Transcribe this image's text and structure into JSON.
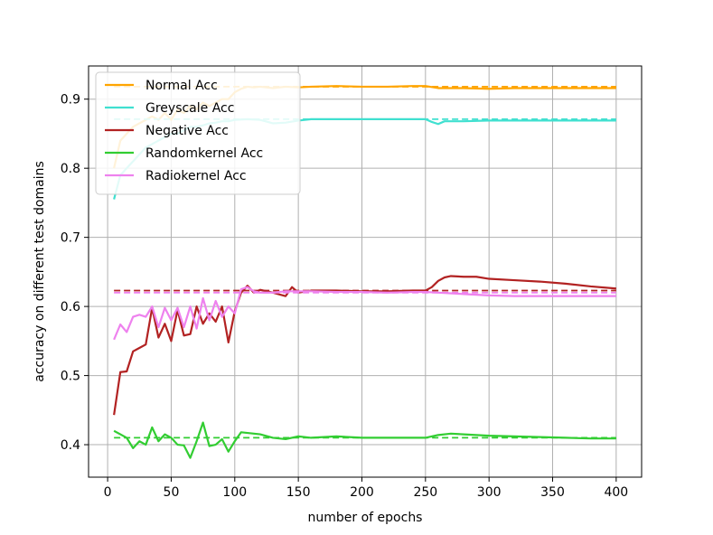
{
  "chart_data": {
    "type": "line",
    "title": "",
    "xlabel": "number of epochs",
    "ylabel": "accuracy on different test domains",
    "xlim": [
      -15,
      420
    ],
    "ylim": [
      0.353,
      0.948
    ],
    "xticks": [
      0,
      50,
      100,
      150,
      200,
      250,
      300,
      350,
      400
    ],
    "yticks": [
      0.4,
      0.5,
      0.6,
      0.7,
      0.8,
      0.9
    ],
    "ytick_labels": [
      "0.4",
      "0.5",
      "0.6",
      "0.7",
      "0.8",
      "0.9"
    ],
    "grid": true,
    "legend_position": "upper-left",
    "series": [
      {
        "name": "Normal Acc",
        "color": "#ffa500",
        "baseline": 0.918,
        "points": [
          [
            5,
            0.8
          ],
          [
            10,
            0.84
          ],
          [
            15,
            0.85
          ],
          [
            20,
            0.86
          ],
          [
            25,
            0.865
          ],
          [
            30,
            0.87
          ],
          [
            35,
            0.875
          ],
          [
            40,
            0.87
          ],
          [
            45,
            0.88
          ],
          [
            50,
            0.87
          ],
          [
            55,
            0.885
          ],
          [
            60,
            0.88
          ],
          [
            65,
            0.89
          ],
          [
            70,
            0.885
          ],
          [
            75,
            0.895
          ],
          [
            80,
            0.89
          ],
          [
            85,
            0.895
          ],
          [
            90,
            0.9
          ],
          [
            95,
            0.9
          ],
          [
            100,
            0.91
          ],
          [
            105,
            0.915
          ],
          [
            110,
            0.918
          ],
          [
            115,
            0.917
          ],
          [
            120,
            0.918
          ],
          [
            130,
            0.916
          ],
          [
            140,
            0.918
          ],
          [
            150,
            0.917
          ],
          [
            160,
            0.918
          ],
          [
            180,
            0.919
          ],
          [
            200,
            0.918
          ],
          [
            220,
            0.918
          ],
          [
            240,
            0.919
          ],
          [
            250,
            0.919
          ],
          [
            260,
            0.916
          ],
          [
            280,
            0.916
          ],
          [
            300,
            0.915
          ],
          [
            320,
            0.916
          ],
          [
            340,
            0.916
          ],
          [
            360,
            0.916
          ],
          [
            380,
            0.916
          ],
          [
            400,
            0.916
          ]
        ]
      },
      {
        "name": "Greyscale Acc",
        "color": "#40e0d0",
        "baseline": 0.871,
        "points": [
          [
            5,
            0.755
          ],
          [
            10,
            0.79
          ],
          [
            15,
            0.8
          ],
          [
            20,
            0.81
          ],
          [
            25,
            0.82
          ],
          [
            30,
            0.83
          ],
          [
            35,
            0.835
          ],
          [
            40,
            0.84
          ],
          [
            45,
            0.845
          ],
          [
            50,
            0.85
          ],
          [
            55,
            0.85
          ],
          [
            60,
            0.855
          ],
          [
            65,
            0.86
          ],
          [
            70,
            0.86
          ],
          [
            75,
            0.862
          ],
          [
            80,
            0.865
          ],
          [
            85,
            0.866
          ],
          [
            90,
            0.868
          ],
          [
            95,
            0.868
          ],
          [
            100,
            0.87
          ],
          [
            110,
            0.871
          ],
          [
            120,
            0.87
          ],
          [
            130,
            0.865
          ],
          [
            140,
            0.866
          ],
          [
            150,
            0.869
          ],
          [
            160,
            0.871
          ],
          [
            180,
            0.871
          ],
          [
            200,
            0.871
          ],
          [
            220,
            0.871
          ],
          [
            240,
            0.871
          ],
          [
            250,
            0.871
          ],
          [
            255,
            0.867
          ],
          [
            260,
            0.864
          ],
          [
            265,
            0.868
          ],
          [
            280,
            0.868
          ],
          [
            300,
            0.869
          ],
          [
            320,
            0.869
          ],
          [
            340,
            0.869
          ],
          [
            360,
            0.869
          ],
          [
            380,
            0.869
          ],
          [
            400,
            0.869
          ]
        ]
      },
      {
        "name": "Negative Acc",
        "color": "#b22222",
        "baseline": 0.623,
        "points": [
          [
            5,
            0.443
          ],
          [
            10,
            0.505
          ],
          [
            15,
            0.506
          ],
          [
            20,
            0.535
          ],
          [
            25,
            0.54
          ],
          [
            30,
            0.545
          ],
          [
            35,
            0.598
          ],
          [
            40,
            0.555
          ],
          [
            45,
            0.575
          ],
          [
            50,
            0.55
          ],
          [
            55,
            0.595
          ],
          [
            60,
            0.558
          ],
          [
            65,
            0.56
          ],
          [
            70,
            0.6
          ],
          [
            75,
            0.575
          ],
          [
            80,
            0.59
          ],
          [
            85,
            0.578
          ],
          [
            90,
            0.6
          ],
          [
            95,
            0.548
          ],
          [
            100,
            0.593
          ],
          [
            105,
            0.62
          ],
          [
            110,
            0.63
          ],
          [
            115,
            0.62
          ],
          [
            120,
            0.624
          ],
          [
            130,
            0.62
          ],
          [
            140,
            0.615
          ],
          [
            145,
            0.628
          ],
          [
            150,
            0.62
          ],
          [
            160,
            0.623
          ],
          [
            180,
            0.623
          ],
          [
            200,
            0.622
          ],
          [
            220,
            0.622
          ],
          [
            240,
            0.623
          ],
          [
            250,
            0.623
          ],
          [
            255,
            0.628
          ],
          [
            260,
            0.637
          ],
          [
            265,
            0.642
          ],
          [
            270,
            0.644
          ],
          [
            280,
            0.643
          ],
          [
            290,
            0.643
          ],
          [
            300,
            0.64
          ],
          [
            320,
            0.638
          ],
          [
            340,
            0.636
          ],
          [
            360,
            0.633
          ],
          [
            380,
            0.629
          ],
          [
            400,
            0.626
          ]
        ]
      },
      {
        "name": "Randomkernel Acc",
        "color": "#32cd32",
        "baseline": 0.41,
        "points": [
          [
            5,
            0.42
          ],
          [
            10,
            0.415
          ],
          [
            15,
            0.41
          ],
          [
            20,
            0.395
          ],
          [
            25,
            0.405
          ],
          [
            30,
            0.4
          ],
          [
            35,
            0.425
          ],
          [
            40,
            0.405
          ],
          [
            45,
            0.415
          ],
          [
            50,
            0.41
          ],
          [
            55,
            0.4
          ],
          [
            60,
            0.399
          ],
          [
            65,
            0.381
          ],
          [
            70,
            0.405
          ],
          [
            75,
            0.432
          ],
          [
            80,
            0.398
          ],
          [
            85,
            0.4
          ],
          [
            90,
            0.408
          ],
          [
            95,
            0.39
          ],
          [
            100,
            0.405
          ],
          [
            105,
            0.418
          ],
          [
            110,
            0.417
          ],
          [
            120,
            0.415
          ],
          [
            130,
            0.41
          ],
          [
            140,
            0.408
          ],
          [
            150,
            0.412
          ],
          [
            160,
            0.41
          ],
          [
            180,
            0.412
          ],
          [
            200,
            0.41
          ],
          [
            220,
            0.41
          ],
          [
            240,
            0.41
          ],
          [
            250,
            0.41
          ],
          [
            260,
            0.414
          ],
          [
            270,
            0.416
          ],
          [
            280,
            0.415
          ],
          [
            300,
            0.413
          ],
          [
            320,
            0.412
          ],
          [
            340,
            0.411
          ],
          [
            360,
            0.41
          ],
          [
            380,
            0.409
          ],
          [
            400,
            0.409
          ]
        ]
      },
      {
        "name": "Radiokernel Acc",
        "color": "#ee82ee",
        "baseline": 0.62,
        "points": [
          [
            5,
            0.552
          ],
          [
            10,
            0.574
          ],
          [
            15,
            0.563
          ],
          [
            20,
            0.585
          ],
          [
            25,
            0.588
          ],
          [
            30,
            0.585
          ],
          [
            35,
            0.6
          ],
          [
            40,
            0.57
          ],
          [
            45,
            0.598
          ],
          [
            50,
            0.58
          ],
          [
            55,
            0.598
          ],
          [
            60,
            0.57
          ],
          [
            65,
            0.6
          ],
          [
            70,
            0.568
          ],
          [
            75,
            0.612
          ],
          [
            80,
            0.58
          ],
          [
            85,
            0.608
          ],
          [
            90,
            0.585
          ],
          [
            95,
            0.6
          ],
          [
            100,
            0.59
          ],
          [
            105,
            0.625
          ],
          [
            110,
            0.628
          ],
          [
            115,
            0.622
          ],
          [
            120,
            0.62
          ],
          [
            130,
            0.62
          ],
          [
            140,
            0.622
          ],
          [
            150,
            0.622
          ],
          [
            160,
            0.622
          ],
          [
            180,
            0.621
          ],
          [
            200,
            0.621
          ],
          [
            220,
            0.62
          ],
          [
            240,
            0.621
          ],
          [
            250,
            0.621
          ],
          [
            260,
            0.62
          ],
          [
            280,
            0.618
          ],
          [
            300,
            0.616
          ],
          [
            320,
            0.615
          ],
          [
            340,
            0.615
          ],
          [
            360,
            0.615
          ],
          [
            380,
            0.615
          ],
          [
            400,
            0.615
          ]
        ]
      }
    ]
  }
}
